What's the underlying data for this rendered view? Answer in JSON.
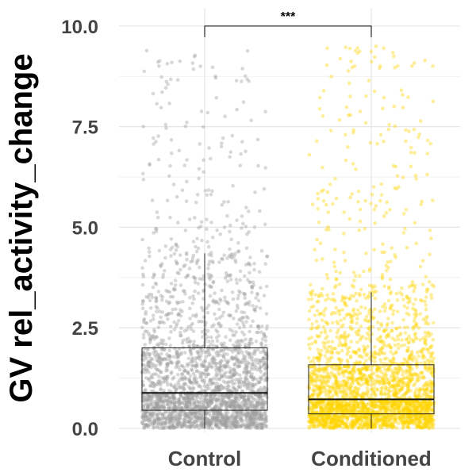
{
  "chart_data": {
    "type": "box",
    "title": "",
    "xlabel": "",
    "ylabel": "GV rel_activity_change",
    "ylim": [
      -0.1,
      10.45
    ],
    "yticks": [
      0.0,
      2.5,
      5.0,
      7.5,
      10.0
    ],
    "ytick_labels": [
      "0.0",
      "2.5",
      "5.0",
      "7.5",
      "10.0"
    ],
    "categories": [
      "Control",
      "Conditioned"
    ],
    "grid": true,
    "legend": "none",
    "series": [
      {
        "category": "Control",
        "color": "#9e9e9e",
        "q1": 0.45,
        "median": 0.88,
        "q3": 2.0,
        "whisker_low": 0.0,
        "whisker_high": 4.35,
        "point_min": 0.0,
        "point_max": 9.5,
        "n_points": 2600
      },
      {
        "category": "Conditioned",
        "color": "#ffd400",
        "q1": 0.36,
        "median": 0.72,
        "q3": 1.58,
        "whisker_low": 0.0,
        "whisker_high": 3.38,
        "point_min": 0.0,
        "point_max": 9.5,
        "n_points": 2800
      }
    ],
    "significance": {
      "label": "***",
      "between": [
        "Control",
        "Conditioned"
      ],
      "y": 10.0
    }
  }
}
